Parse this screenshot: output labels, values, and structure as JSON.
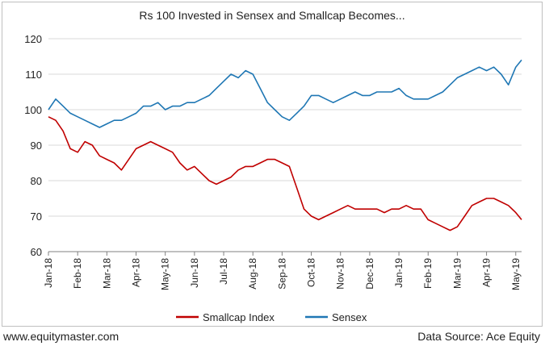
{
  "footer": {
    "left": "www.equitymaster.com",
    "right": "Data Source: Ace Equity"
  },
  "chart_data": {
    "type": "line",
    "title": "Rs 100 Invested in Sensex and Smallcap Becomes...",
    "xlabel": "",
    "ylabel": "",
    "ylim": [
      60,
      120
    ],
    "yticks": [
      60,
      70,
      80,
      90,
      100,
      110,
      120
    ],
    "xticks": [
      "Jan-18",
      "Feb-18",
      "Mar-18",
      "Apr-18",
      "May-18",
      "Jun-18",
      "Jul-18",
      "Aug-18",
      "Sep-18",
      "Oct-18",
      "Nov-18",
      "Dec-18",
      "Jan-19",
      "Feb-19",
      "Mar-19",
      "Apr-19",
      "May-19"
    ],
    "grid": true,
    "legend": "bottom",
    "x": [
      0,
      0.25,
      0.5,
      0.75,
      1,
      1.25,
      1.5,
      1.75,
      2,
      2.25,
      2.5,
      2.75,
      3,
      3.25,
      3.5,
      3.75,
      4,
      4.25,
      4.5,
      4.75,
      5,
      5.25,
      5.5,
      5.75,
      6,
      6.25,
      6.5,
      6.75,
      7,
      7.25,
      7.5,
      7.75,
      8,
      8.25,
      8.5,
      8.75,
      9,
      9.25,
      9.5,
      9.75,
      10,
      10.25,
      10.5,
      10.75,
      11,
      11.25,
      11.5,
      11.75,
      12,
      12.25,
      12.5,
      12.75,
      13,
      13.25,
      13.5,
      13.75,
      14,
      14.25,
      14.5,
      14.75,
      15,
      15.25,
      15.5,
      15.75,
      16,
      16.2
    ],
    "series": [
      {
        "name": "Smallcap Index",
        "color": "#c00000",
        "values": [
          98,
          97,
          94,
          89,
          88,
          91,
          90,
          87,
          86,
          85,
          83,
          86,
          89,
          90,
          91,
          90,
          89,
          88,
          85,
          83,
          84,
          82,
          80,
          79,
          80,
          81,
          83,
          84,
          84,
          85,
          86,
          86,
          85,
          84,
          78,
          72,
          70,
          69,
          70,
          71,
          72,
          73,
          72,
          72,
          72,
          72,
          71,
          72,
          72,
          73,
          72,
          72,
          69,
          68,
          67,
          66,
          67,
          70,
          73,
          74,
          75,
          75,
          74,
          73,
          71,
          69
        ]
      },
      {
        "name": "Sensex",
        "color": "#1f77b4",
        "values": [
          100,
          103,
          101,
          99,
          98,
          97,
          96,
          95,
          96,
          97,
          97,
          98,
          99,
          101,
          101,
          102,
          100,
          101,
          101,
          102,
          102,
          103,
          104,
          106,
          108,
          110,
          109,
          111,
          110,
          106,
          102,
          100,
          98,
          97,
          99,
          101,
          104,
          104,
          103,
          102,
          103,
          104,
          105,
          104,
          104,
          105,
          105,
          105,
          106,
          104,
          103,
          103,
          103,
          104,
          105,
          107,
          109,
          110,
          111,
          112,
          111,
          112,
          110,
          107,
          112,
          114
        ]
      }
    ]
  }
}
